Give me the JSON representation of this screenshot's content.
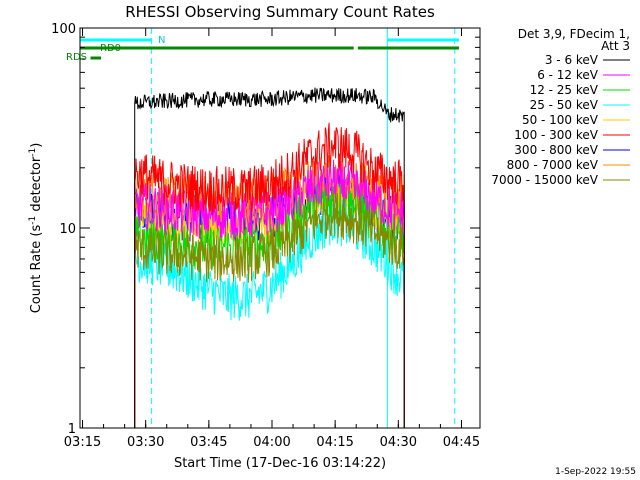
{
  "chart_data": {
    "type": "line",
    "title": "RHESSI Observing Summary Count Rates",
    "xlabel": "Start Time (17-Dec-16 03:14:22)",
    "ylabel_main": "Count Rate (s",
    "ylabel_sup1": "-1",
    "ylabel_mid": " detector",
    "ylabel_sup2": "-1",
    "ylabel_end": ")",
    "x_units": "minutes after 03:14:22",
    "xlim": [
      0,
      95
    ],
    "ylim": [
      1,
      100
    ],
    "yscale": "log",
    "x_ticks": [
      {
        "label": "03:15",
        "value": 0.6
      },
      {
        "label": "03:30",
        "value": 15.6
      },
      {
        "label": "03:45",
        "value": 30.6
      },
      {
        "label": "04:00",
        "value": 45.6
      },
      {
        "label": "04:15",
        "value": 60.6
      },
      {
        "label": "04:30",
        "value": 75.6
      },
      {
        "label": "04:45",
        "value": 90.6
      }
    ],
    "y_ticks": [
      {
        "label": "1",
        "value": 1
      },
      {
        "label": "10",
        "value": 10
      },
      {
        "label": "100",
        "value": 100
      }
    ],
    "legend_title": [
      "Det 3,9, FDecim 1,",
      "Att 3"
    ],
    "series": [
      {
        "name": "3 - 6 keV",
        "color": "#000000",
        "x": [
          13,
          20,
          30,
          40,
          45,
          50,
          55,
          60,
          65,
          70,
          72,
          73,
          75,
          77
        ],
        "values": [
          42,
          43,
          44,
          44,
          44,
          45,
          46,
          46,
          46,
          45,
          40,
          37,
          37,
          36
        ]
      },
      {
        "name": "6 - 12 keV",
        "color": "#ff00ff",
        "x": [
          13,
          20,
          30,
          40,
          45,
          50,
          55,
          60,
          65,
          70,
          75,
          77
        ],
        "values": [
          13,
          12.5,
          11.5,
          11.5,
          12,
          13.5,
          16,
          17,
          16,
          14,
          12,
          12
        ]
      },
      {
        "name": "12 - 25 keV",
        "color": "#00dd00",
        "x": [
          13,
          20,
          30,
          40,
          45,
          50,
          55,
          60,
          65,
          70,
          75,
          77
        ],
        "values": [
          9,
          8.5,
          8,
          8,
          8.5,
          10,
          13,
          14,
          13,
          11,
          9,
          9
        ]
      },
      {
        "name": "25 - 50 keV",
        "color": "#00ffff",
        "x": [
          13,
          20,
          30,
          35,
          40,
          45,
          50,
          55,
          60,
          65,
          70,
          75,
          77
        ],
        "values": [
          7,
          6.5,
          5,
          4.5,
          4.5,
          5,
          6.5,
          9,
          11,
          10,
          8,
          6,
          5.5
        ]
      },
      {
        "name": "50 - 100 keV",
        "color": "#ffcc00",
        "x": [
          13,
          20,
          30,
          40,
          45,
          50,
          55,
          60,
          65,
          70,
          75,
          77
        ],
        "values": [
          11,
          10.5,
          10,
          10,
          10.5,
          11.5,
          14,
          16,
          15,
          12.5,
          11,
          11
        ]
      },
      {
        "name": "100 - 300 keV",
        "color": "#ff0000",
        "x": [
          13,
          20,
          30,
          40,
          45,
          50,
          55,
          60,
          65,
          70,
          75,
          77
        ],
        "values": [
          19,
          17,
          15.5,
          15.5,
          16.5,
          19,
          23,
          26,
          24,
          19,
          17,
          17
        ]
      },
      {
        "name": "300 - 800 keV",
        "color": "#0000ff",
        "x": [
          13,
          20,
          30,
          40,
          45,
          50,
          55,
          60,
          65,
          70,
          75,
          77
        ],
        "values": [
          12,
          11.5,
          11,
          11,
          11.5,
          12.5,
          14.5,
          15.5,
          14.5,
          12.5,
          11,
          11
        ]
      },
      {
        "name": "800 - 7000 keV",
        "color": "#ff8800",
        "x": [
          13,
          20,
          30,
          40,
          45,
          50,
          55,
          60,
          65,
          70,
          75,
          77
        ],
        "values": [
          15,
          14.5,
          14,
          14,
          14.5,
          15.5,
          17,
          18,
          17,
          15.5,
          14.5,
          14.5
        ]
      },
      {
        "name": "7000 - 15000 keV",
        "color": "#888800",
        "x": [
          13,
          20,
          30,
          40,
          45,
          50,
          55,
          60,
          65,
          70,
          75,
          77
        ],
        "values": [
          8,
          7.5,
          7,
          7,
          7.5,
          8.5,
          10.5,
          12,
          11,
          9.5,
          8,
          8
        ]
      }
    ],
    "flags": [
      {
        "name": "N",
        "color": "#00ffff",
        "row": "N",
        "segments": [
          [
            0,
            17
          ],
          [
            73,
            90
          ]
        ]
      },
      {
        "name": "RD0",
        "color": "#008800",
        "row": "RD0",
        "segments": [
          [
            0,
            50
          ],
          [
            50,
            65
          ],
          [
            66,
            90
          ]
        ]
      },
      {
        "name": "RDS",
        "color": "#008800",
        "row": "RDS",
        "segments": [
          [
            2.5,
            5
          ]
        ]
      }
    ],
    "vlines_dashed": [
      17,
      89
    ],
    "vlines_solid": [
      0,
      73
    ]
  },
  "footer": {
    "timestamp": "1-Sep-2022 19:55"
  }
}
